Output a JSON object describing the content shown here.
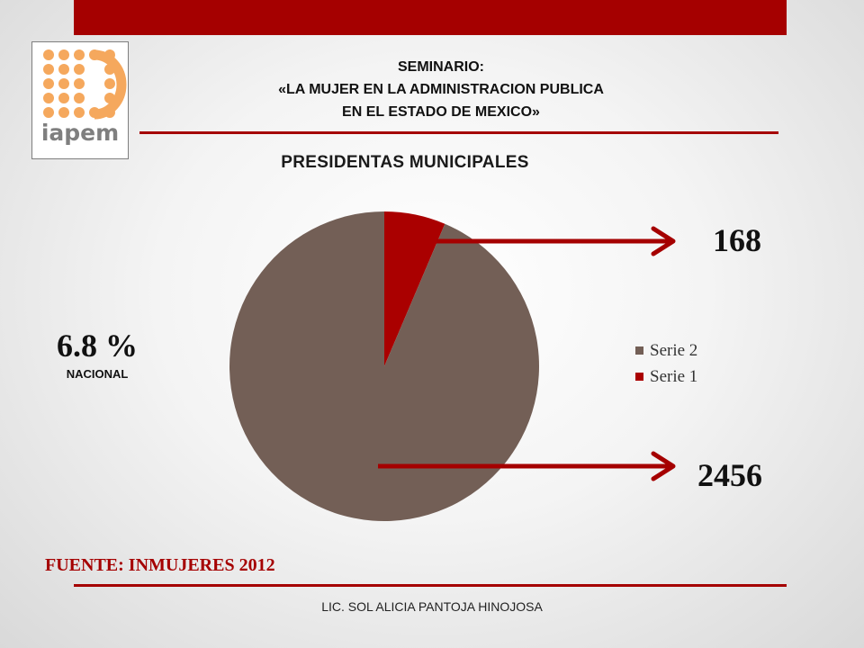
{
  "colors": {
    "accent": "#a50000",
    "slice_serie2": "#735f56",
    "slice_serie1": "#aa0000",
    "logo_dots": "#f5a85d",
    "logo_text": "#7f7f7f"
  },
  "logo": {
    "text": "iapem",
    "icon": "iapem-dots-logo"
  },
  "header": {
    "lines": [
      "SEMINARIO:",
      "«LA MUJER EN LA ADMINISTRACION PUBLICA",
      "EN EL ESTADO DE MEXICO»"
    ]
  },
  "summary": {
    "percent": "6.8 %",
    "label": "NACIONAL"
  },
  "source": "FUENTE: INMUJERES 2012",
  "footer": "LIC. SOL ALICIA PANTOJA HINOJOSA",
  "chart_data": {
    "type": "pie",
    "title": "PRESIDENTAS MUNICIPALES",
    "series": [
      {
        "name": "Serie 2",
        "value": 2456,
        "color": "#735f56"
      },
      {
        "name": "Serie 1",
        "value": 168,
        "color": "#aa0000"
      }
    ],
    "callouts": [
      {
        "label": "168",
        "series": "Serie 1"
      },
      {
        "label": "2456",
        "series": "Serie 2"
      }
    ],
    "legend": "right"
  }
}
